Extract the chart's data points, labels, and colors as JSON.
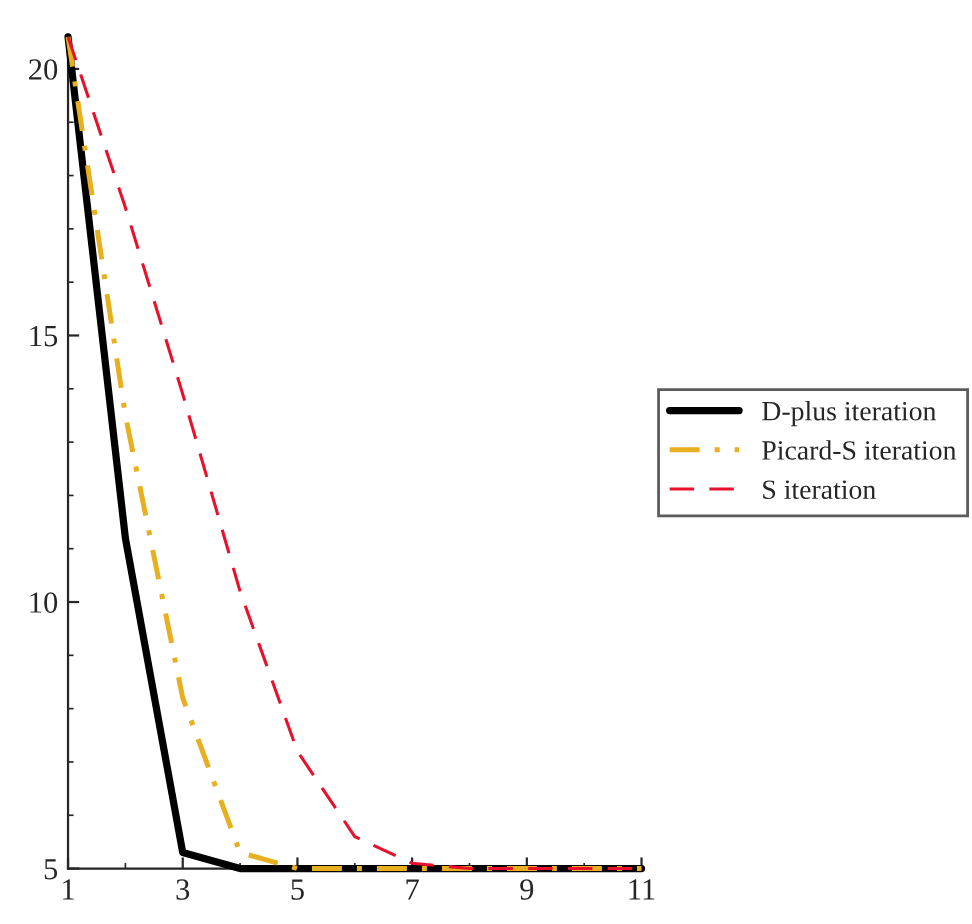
{
  "chart_data": {
    "type": "line",
    "x": [
      1,
      2,
      3,
      4,
      5,
      6,
      7,
      8,
      9,
      10,
      11
    ],
    "series": [
      {
        "name": "D-plus iteration",
        "color": "#000000",
        "line_style": "solid",
        "values": [
          20.6,
          11.2,
          5.3,
          5.0,
          5.0,
          5.0,
          5.0,
          5.0,
          5.0,
          5.0,
          5.0
        ]
      },
      {
        "name": "Picard-S iteration",
        "color": "#e8b020",
        "line_style": "dashdot",
        "values": [
          20.6,
          13.5,
          8.2,
          5.3,
          5.0,
          5.0,
          5.0,
          5.0,
          5.0,
          5.0,
          5.0
        ]
      },
      {
        "name": "S iteration",
        "color": "#e8102a",
        "line_style": "dashed",
        "values": [
          20.6,
          17.4,
          13.9,
          10.2,
          7.2,
          5.6,
          5.1,
          5.0,
          5.0,
          5.0,
          5.0
        ]
      }
    ],
    "xlim": [
      1,
      11
    ],
    "xticks": [
      1,
      3,
      5,
      7,
      9,
      11
    ],
    "ylim": [
      5,
      20.6
    ],
    "yticks": [
      5,
      10,
      15,
      20
    ],
    "grid": false,
    "legend": "right",
    "marker": "none"
  }
}
